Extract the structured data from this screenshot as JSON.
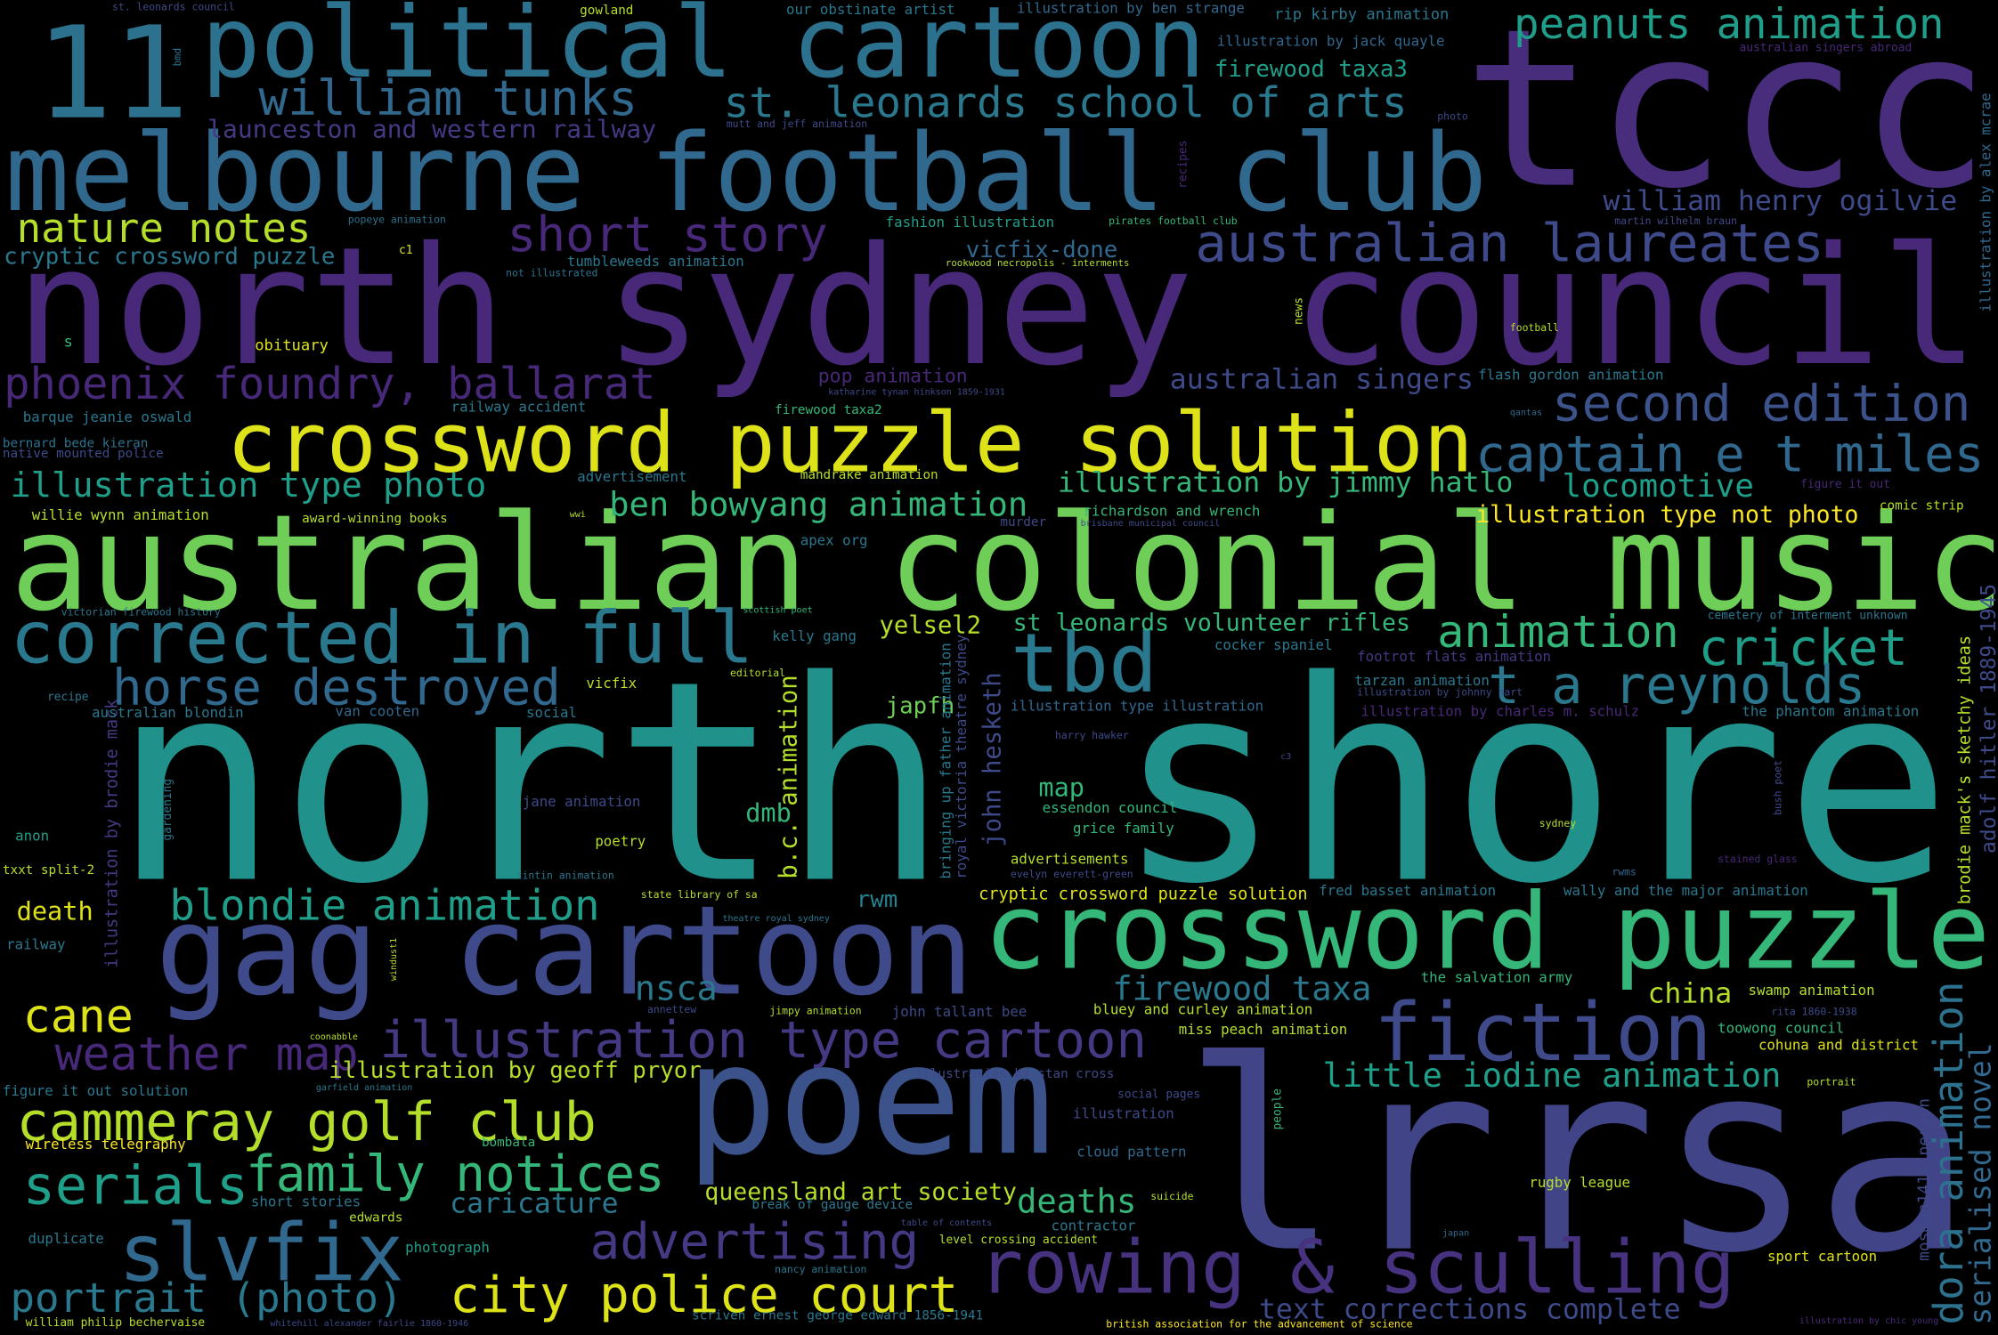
{
  "words": [
    "north shore",
    "lrrsa",
    "tccc",
    "north sydney council",
    "australian colonial music",
    "melbourne football club",
    "political cartoon",
    "11",
    "crossword puzzle solution",
    "crossword puzzle",
    "gag cartoon",
    "poem",
    "fiction",
    "corrected in full",
    "tbd",
    "slvfix",
    "rowing & sculling",
    "illustration type cartoon",
    "australian laureates",
    "second edition",
    "captain e t miles",
    "city police court",
    "cammeray golf club",
    "family notices",
    "serials",
    "portrait (photo)",
    "advertising",
    "weather map",
    "cane",
    "william tunks",
    "st. leonards school of arts",
    "nature notes",
    "short story",
    "phoenix foundry, ballarat",
    "peanuts animation",
    "illustration type photo",
    "ben bowyang animation",
    "horse destroyed",
    "animation",
    "cricket",
    "t a reynolds",
    "blondie animation",
    "little iodine animation",
    "firewood taxa",
    "text corrections complete",
    "queensland art society",
    "deaths",
    "caricature",
    "nsca",
    "china",
    "dora animation",
    "serialised novel",
    "b.c. animation",
    "john hesketh",
    "dmb",
    "map",
    "rwm",
    "yelsel2",
    "japfh",
    "locomotive",
    "illustration by jimmy hatlo",
    "illustration type not photo",
    "australian singers",
    "william henry ogilvie",
    "st leonards volunteer rifles",
    "vicfix-done",
    "firewood taxa3",
    "illustration by geoff pryor",
    "cryptic crossword puzzle",
    "launceston and western railway",
    "obituary",
    "death",
    "cryptic crossword puzzle solution",
    "adolf hitler 1889-1945",
    "illustration by alex mcrae",
    "brodie mack's sketchy ideas",
    "mosman1418-person",
    "illustration by brodie mack",
    "royal victoria theatre sydney",
    "bringing up father animation",
    "rip kirby animation",
    "illustration by jack quayle",
    "illustration by ben strange",
    "our obstinate artist",
    "gowland",
    "st. leonards council",
    "bmd",
    "australian singers abroad",
    "photo",
    "mutt and jeff animation",
    "recipes",
    "pirates football club",
    "martin wilhelm braun",
    "fashion illustration",
    "popeye animation",
    "tumbleweeds animation",
    "c1",
    "rookwood necropolis - interments",
    "not illustrated",
    "s",
    "news",
    "football",
    "pop animation",
    "flash gordon animation",
    "katharine tynan hinkson 1859-1931",
    "firewood taxa2",
    "railway accident",
    "barque jeanie oswald",
    "qantas",
    "bernard bede kieran",
    "native mounted police",
    "advertisement",
    "mandrake animation",
    "figure it out",
    "willie wynn animation",
    "award-winning books",
    "wwi",
    "richardson and wrench",
    "murder",
    "brisbane municipal council",
    "comic strip",
    "apex org",
    "scottish poet",
    "victorian firewood history",
    "cemetery of interment unknown",
    "kelly gang",
    "cocker spaniel",
    "footrot flats animation",
    "editorial",
    "tarzan animation",
    "illustration by johnny hart",
    "vicfix",
    "recipe",
    "australian blondin",
    "van cooten",
    "social",
    "illustration type illustration",
    "illustration by charles m. schulz",
    "the phantom animation",
    "harry hawker",
    "c3",
    "bush poet",
    "gardening",
    "jane animation",
    "essendon council",
    "grice family",
    "sydney",
    "anon",
    "poetry",
    "txxt split-2",
    "tintin animation",
    "advertisements",
    "evelyn everett-green",
    "stained glass",
    "rwms",
    "state library of sa",
    "fred basset animation",
    "wally and the major animation",
    "theatre royal sydney",
    "railway",
    "windust1",
    "the salvation army",
    "swamp animation",
    "annettew",
    "jimpy animation",
    "john tallant bee",
    "bluey and curley animation",
    "rita 1860-1938",
    "miss peach animation",
    "toowong council",
    "coonabble",
    "illustration by stan cross",
    "cohuna and district",
    "garfield animation",
    "figure it out solution",
    "portrait",
    "social pages",
    "people",
    "illustration",
    "wireless telegraphy",
    "bombala",
    "cloud pattern",
    "suicide",
    "rugby league",
    "short stories",
    "edwards",
    "break of gauge device",
    "table of contents",
    "contractor",
    "duplicate",
    "photograph",
    "level crossing accident",
    "japan",
    "sport cartoon",
    "nancy animation",
    "william philip bechervaise",
    "whitehill alexander fairlie 1860-1946",
    "scriven ernest george edward 1856-1941",
    "british association for the advancement of science",
    "illustration by chic young"
  ]
}
